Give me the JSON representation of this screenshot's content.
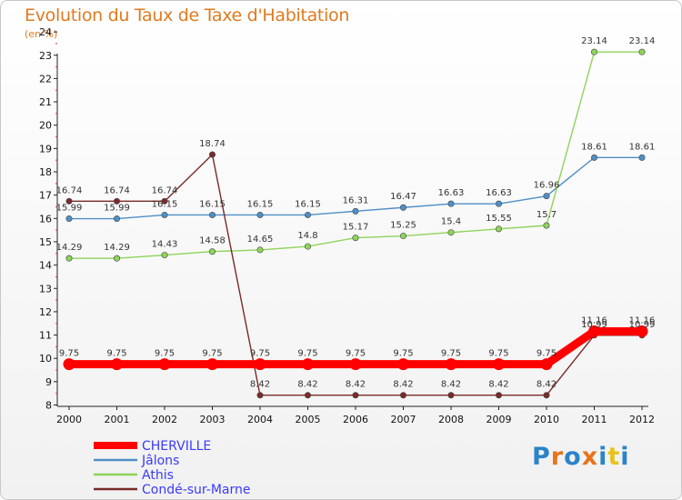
{
  "chart_data": {
    "type": "line",
    "title": "Evolution du Taux de Taxe d'Habitation",
    "ylabel": "(en %)",
    "xlabel": "",
    "x": [
      "2000",
      "2001",
      "2002",
      "2003",
      "2004",
      "2005",
      "2006",
      "2007",
      "2008",
      "2009",
      "2010",
      "2011",
      "2012"
    ],
    "ylim": [
      8,
      24
    ],
    "yticks": [
      8,
      9,
      10,
      11,
      12,
      13,
      14,
      15,
      16,
      17,
      18,
      19,
      20,
      21,
      22,
      23,
      24
    ],
    "grid": false,
    "legend_position": "bottom-left",
    "series": [
      {
        "name": "CHERVILLE",
        "color": "#ff0000",
        "values": [
          9.75,
          9.75,
          9.75,
          9.75,
          9.75,
          9.75,
          9.75,
          9.75,
          9.75,
          9.75,
          9.75,
          11.16,
          11.16
        ],
        "labels": [
          "9.75",
          "9.75",
          "9.75",
          "9.75",
          "9.75",
          "9.75",
          "9.75",
          "9.75",
          "9.75",
          "9.75",
          "9.75",
          "11.16",
          "11.16"
        ]
      },
      {
        "name": "Jâlons",
        "color": "#4f8fc6",
        "values": [
          15.99,
          15.99,
          16.15,
          16.15,
          16.15,
          16.15,
          16.31,
          16.47,
          16.63,
          16.63,
          16.96,
          18.61,
          18.61
        ],
        "labels": [
          "15.99",
          "15.99",
          "16.15",
          "16.15",
          "16.15",
          "16.15",
          "16.31",
          "16.47",
          "16.63",
          "16.63",
          "16.96",
          "18.61",
          "18.61"
        ]
      },
      {
        "name": "Athis",
        "color": "#8fd45a",
        "values": [
          14.29,
          14.29,
          14.43,
          14.58,
          14.65,
          14.8,
          15.17,
          15.25,
          15.4,
          15.55,
          15.7,
          23.14,
          23.14
        ],
        "labels": [
          "14.29",
          "14.29",
          "14.43",
          "14.58",
          "14.65",
          "14.8",
          "15.17",
          "15.25",
          "15.4",
          "15.55",
          "15.7",
          "23.14",
          "23.14"
        ]
      },
      {
        "name": "Condé-sur-Marne",
        "color": "#7a2a2a",
        "values": [
          16.74,
          16.74,
          16.74,
          18.74,
          8.42,
          8.42,
          8.42,
          8.42,
          8.42,
          8.42,
          8.42,
          10.99,
          10.99
        ],
        "labels": [
          "16.74",
          "16.74",
          "16.74",
          "18.74",
          "8.42",
          "8.42",
          "8.42",
          "8.42",
          "8.42",
          "8.42",
          "8.42",
          "10.99",
          "10.99"
        ]
      }
    ]
  },
  "logo": {
    "letters": [
      "P",
      "r",
      "o",
      "x",
      "i",
      "t",
      "i"
    ],
    "colors": [
      "#2b84c9",
      "#e8731a",
      "#2b84c9",
      "#e8731a",
      "#2b84c9",
      "#e8c31a",
      "#2b84c9"
    ]
  }
}
